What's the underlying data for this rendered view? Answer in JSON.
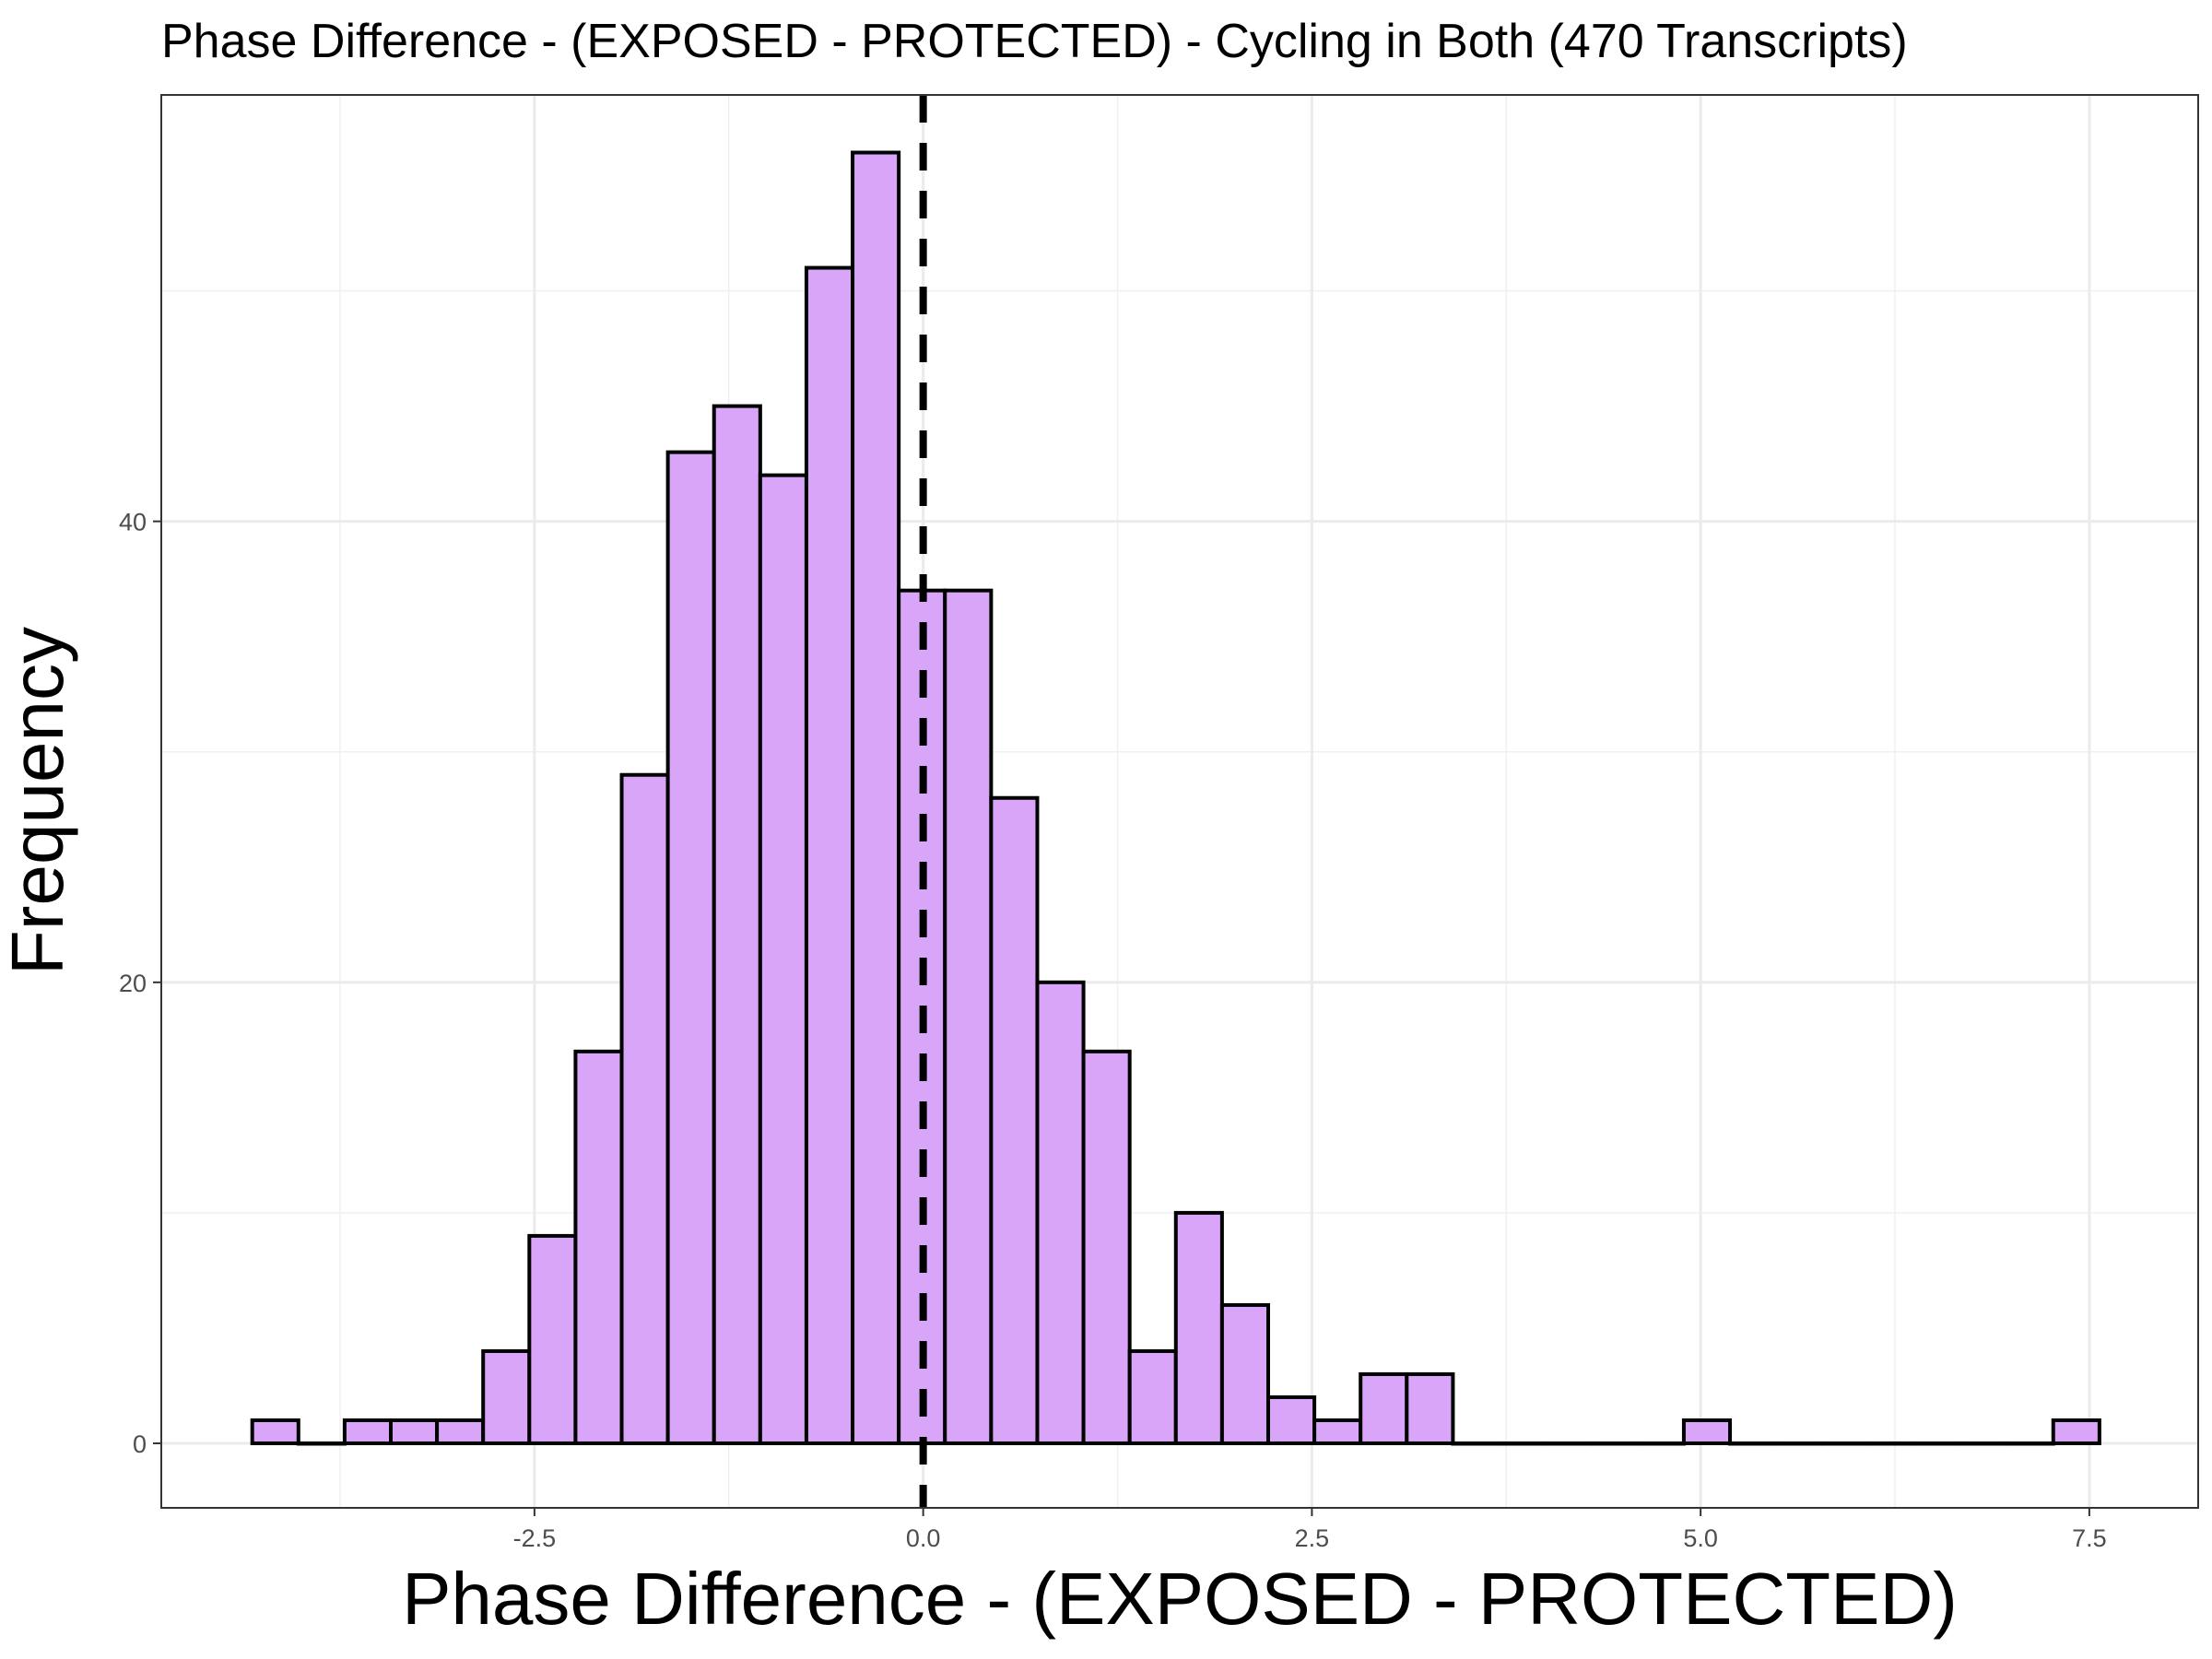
{
  "chart_data": {
    "type": "bar",
    "title": "Phase Difference - (EXPOSED - PROTECTED) - Cycling in Both (470 Transcripts)",
    "xlabel": "Phase Difference - (EXPOSED - PROTECTED)",
    "ylabel": "Frequency",
    "xlim": [
      -4.9,
      8.2
    ],
    "ylim": [
      -2.8,
      58.5
    ],
    "x_ticks": [
      -2.5,
      0.0,
      2.5,
      5.0,
      7.5
    ],
    "x_tick_labels": [
      "-2.5",
      "0.0",
      "2.5",
      "5.0",
      "7.5"
    ],
    "y_ticks": [
      0,
      20,
      40
    ],
    "y_tick_labels": [
      "0",
      "20",
      "40"
    ],
    "grid": true,
    "bin_start": -4.315,
    "bin_width": 0.297,
    "values": [
      1,
      0,
      1,
      1,
      1,
      4,
      9,
      17,
      29,
      43,
      45,
      42,
      51,
      56,
      37,
      37,
      28,
      20,
      17,
      4,
      10,
      6,
      2,
      1,
      3,
      3,
      0,
      0,
      0,
      0,
      0,
      1,
      0,
      0,
      0,
      0,
      0,
      0,
      0,
      1
    ],
    "reference_line": {
      "x": 0,
      "style": "dashed"
    },
    "bar_fill": "#D9A5F8",
    "bar_stroke": "#000000"
  }
}
